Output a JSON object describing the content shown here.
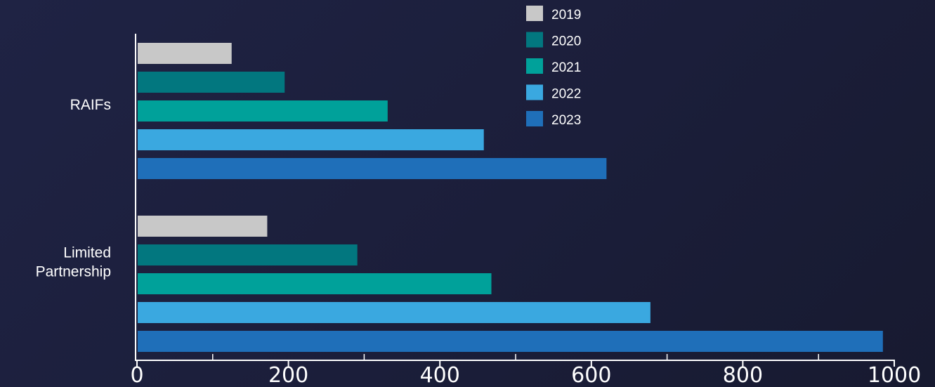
{
  "chart_data": {
    "type": "bar",
    "orientation": "horizontal",
    "categories": [
      "RAIFs",
      "Limited Partnership"
    ],
    "category_lines": [
      [
        "RAIFs"
      ],
      [
        "Limited",
        "Partnership"
      ]
    ],
    "series": [
      {
        "name": "2019",
        "color": "#c8c8c8",
        "values": [
          125,
          172
        ]
      },
      {
        "name": "2020",
        "color": "#02777f",
        "values": [
          195,
          291
        ]
      },
      {
        "name": "2021",
        "color": "#00a19a",
        "values": [
          331,
          468
        ]
      },
      {
        "name": "2022",
        "color": "#3aa8e0",
        "values": [
          458,
          678
        ]
      },
      {
        "name": "2023",
        "color": "#1f6fb9",
        "values": [
          620,
          985
        ]
      }
    ],
    "x_ticks": [
      0,
      200,
      400,
      600,
      800,
      1000
    ],
    "xlim": [
      0,
      1000
    ],
    "legend_position": "top-right",
    "grid": false,
    "axis_color": "#ffffff"
  }
}
